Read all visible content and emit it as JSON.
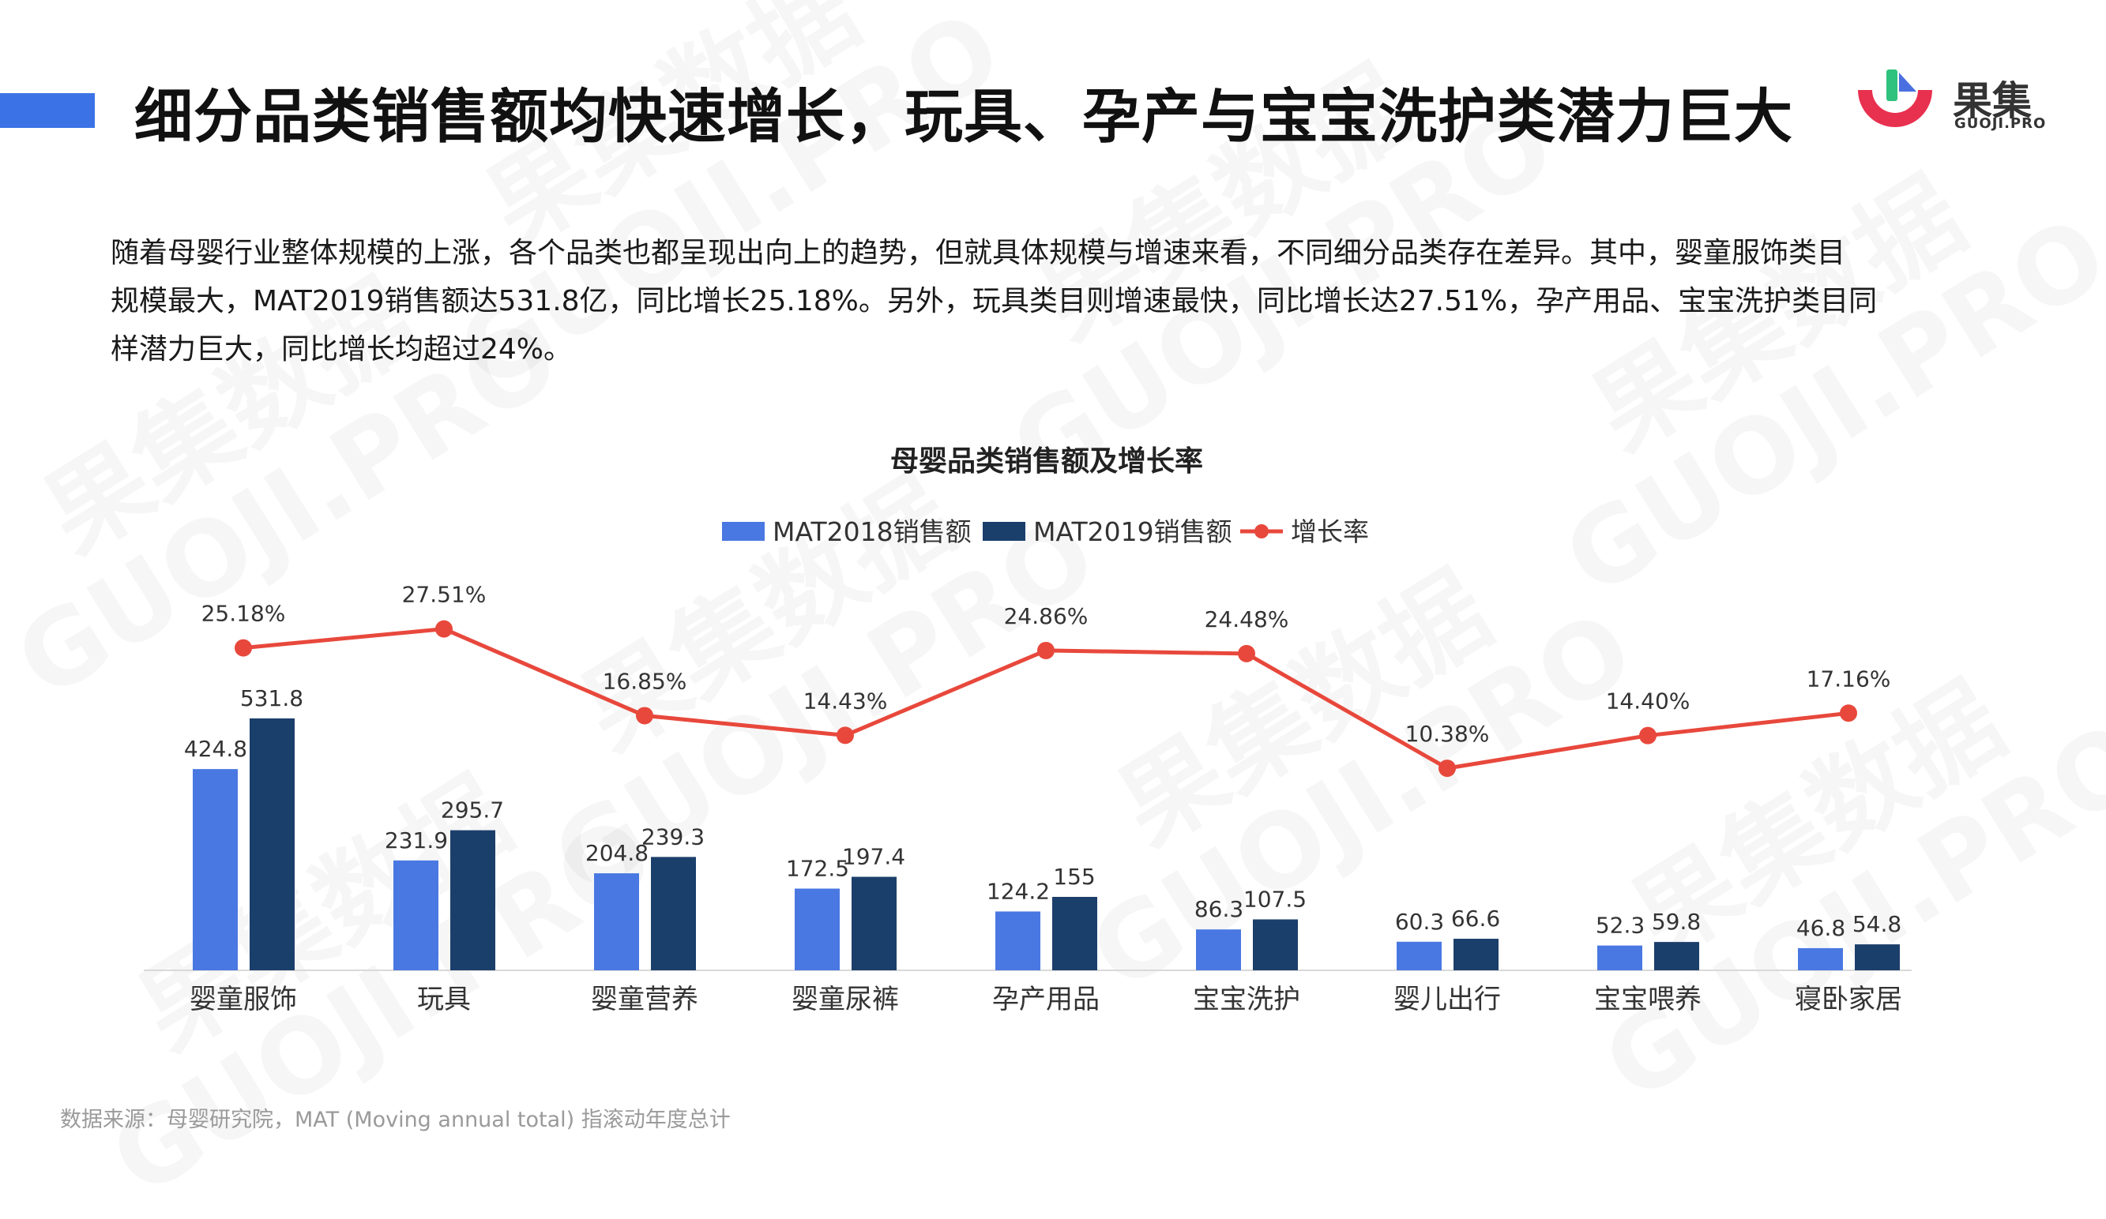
{
  "header": {
    "title": "细分品类销售额均快速增长，玩具、孕产与宝宝洗护类潜力巨大",
    "accent_color": "#3b73e6"
  },
  "logo": {
    "name_cn": "果集",
    "name_en": "GUOJI.PRO",
    "colors": {
      "red": "#e8304f",
      "green": "#2ec27e",
      "blue": "#4a6fe0"
    }
  },
  "watermark": {
    "text_cn": "果集数据",
    "text_en": "GUOJI.PRO"
  },
  "description": [
    "随着母婴行业整体规模的上涨，各个品类也都呈现出向上的趋势，但就具体规模与增速来看，不同细分品类存在差异。其中，婴童服饰类目",
    "规模最大，MAT2019销售额达531.8亿，同比增长25.18%。另外，玩具类目则增速最快，同比增长达27.51%，孕产用品、宝宝洗护类目同",
    "样潜力巨大，同比增长均超过24%。"
  ],
  "chart_data": {
    "type": "bar",
    "combo_line": true,
    "title": "母婴品类销售额及增长率",
    "categories": [
      "婴童服饰",
      "玩具",
      "婴童营养",
      "婴童尿裤",
      "孕产用品",
      "宝宝洗护",
      "婴儿出行",
      "宝宝喂养",
      "寝卧家居"
    ],
    "series": [
      {
        "name": "MAT2018销售额",
        "type": "bar",
        "color": "#4a78e2",
        "values": [
          424.8,
          231.9,
          204.8,
          172.5,
          124.2,
          86.3,
          60.3,
          52.3,
          46.8
        ]
      },
      {
        "name": "MAT2019销售额",
        "type": "bar",
        "color": "#1b3f6b",
        "values": [
          531.8,
          295.7,
          239.3,
          197.4,
          155,
          107.5,
          66.6,
          59.8,
          54.8
        ]
      },
      {
        "name": "增长率",
        "type": "line",
        "color": "#e8483c",
        "values": [
          25.18,
          27.51,
          16.85,
          14.43,
          24.86,
          24.48,
          10.38,
          14.4,
          17.16
        ],
        "labels": [
          "25.18%",
          "27.51%",
          "16.85%",
          "14.43%",
          "24.86%",
          "24.48%",
          "10.38%",
          "14.40%",
          "17.16%"
        ]
      }
    ],
    "bar_value_labels_2018": [
      "424.8",
      "231.9",
      "204.8",
      "172.5",
      "124.2",
      "86.3",
      "60.3",
      "52.3",
      "46.8"
    ],
    "bar_value_labels_2019": [
      "531.8",
      "295.7",
      "239.3",
      "197.4",
      "155",
      "107.5",
      "66.6",
      "59.8",
      "54.8"
    ],
    "ylim_bars": [
      0,
      570
    ],
    "ylim_rate": [
      0,
      40
    ],
    "legend_position": "top-center",
    "grid": false
  },
  "footnote": "数据来源：母婴研究院，MAT (Moving annual total) 指滚动年度总计"
}
